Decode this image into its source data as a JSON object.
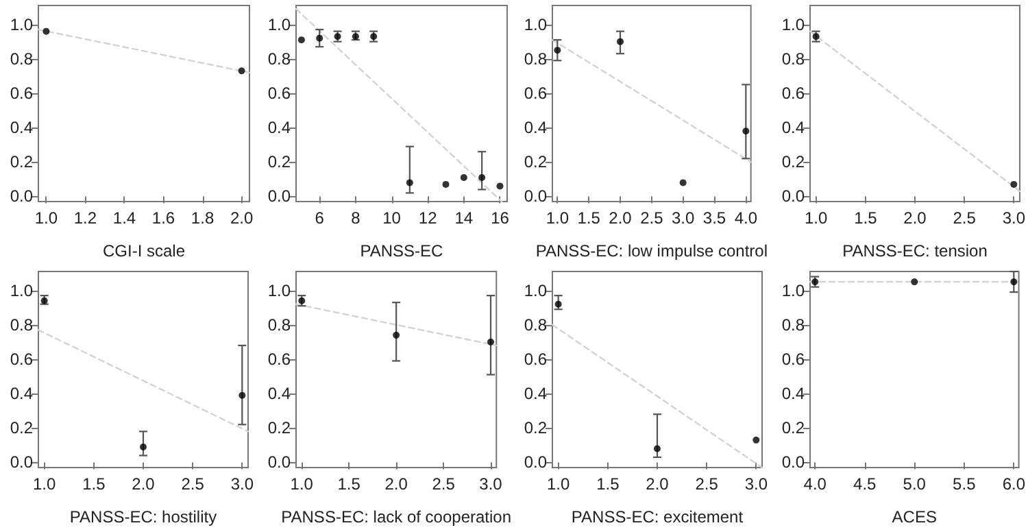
{
  "chart_data": [
    {
      "type": "scatter",
      "xlabel": "CGI-I scale",
      "marker": "circle",
      "grid": false,
      "xlim": [
        0.96,
        2.04
      ],
      "ylim": [
        -0.03,
        1.11
      ],
      "xticks": [
        {
          "value": 1,
          "label": "1.0"
        },
        {
          "value": 1.2,
          "label": "1.2"
        },
        {
          "value": 1.4,
          "label": "1.4"
        },
        {
          "value": 1.6,
          "label": "1.6"
        },
        {
          "value": 1.8,
          "label": "1.8"
        },
        {
          "value": 2,
          "label": "2.0"
        }
      ],
      "yticks": [
        {
          "value": 0,
          "label": "0.0"
        },
        {
          "value": 0.2,
          "label": "0.2"
        },
        {
          "value": 0.4,
          "label": "0.4"
        },
        {
          "value": 0.6,
          "label": "0.6"
        },
        {
          "value": 0.8,
          "label": "0.8"
        },
        {
          "value": 1,
          "label": "1.0"
        }
      ],
      "series": [
        {
          "type": "line",
          "marker": "none",
          "line_style": "dashed",
          "color": "#d3d3d3",
          "x": [
            0.96,
            2.04
          ],
          "values": [
            0.97,
            0.72
          ]
        },
        {
          "color": "#000000",
          "x": [
            1,
            2
          ],
          "values": [
            0.96,
            0.73
          ]
        }
      ]
    },
    {
      "type": "scatter",
      "xlabel": "PANSS-EC",
      "marker": "circle",
      "grid": false,
      "xlim": [
        4.7,
        16.4
      ],
      "ylim": [
        -0.03,
        1.11
      ],
      "xticks": [
        6,
        8,
        10,
        12,
        14,
        16
      ],
      "yticks": [
        {
          "value": 0,
          "label": "0.0"
        },
        {
          "value": 0.2,
          "label": "0.2"
        },
        {
          "value": 0.4,
          "label": "0.4"
        },
        {
          "value": 0.6,
          "label": "0.6"
        },
        {
          "value": 0.8,
          "label": "0.8"
        },
        {
          "value": 1,
          "label": "1.0"
        }
      ],
      "series": [
        {
          "type": "line",
          "marker": "none",
          "line_style": "dashed",
          "color": "#d3d3d3",
          "x": [
            4.7,
            16.1
          ],
          "values": [
            1.09,
            -0.03
          ]
        },
        {
          "color": "#000000",
          "x": [
            5,
            6,
            7,
            8,
            9,
            11,
            13,
            14,
            15,
            16
          ],
          "values": [
            0.91,
            0.92,
            0.93,
            0.93,
            0.93,
            0.08,
            0.07,
            0.11,
            0.11,
            0.06
          ],
          "errors": [
            null,
            [
              0.87,
              0.97
            ],
            [
              0.9,
              0.96
            ],
            [
              0.91,
              0.96
            ],
            [
              0.9,
              0.96
            ],
            [
              0.02,
              0.29
            ],
            null,
            null,
            [
              0.04,
              0.26
            ],
            null
          ]
        }
      ]
    },
    {
      "type": "scatter",
      "xlabel": "PANSS-EC: low impulse control",
      "marker": "circle",
      "grid": false,
      "xlim": [
        0.92,
        4.08
      ],
      "ylim": [
        -0.03,
        1.11
      ],
      "xticks": [
        {
          "value": 1,
          "label": "1.0"
        },
        {
          "value": 1.5,
          "label": "1.5"
        },
        {
          "value": 2,
          "label": "2.0"
        },
        {
          "value": 2.5,
          "label": "2.5"
        },
        {
          "value": 3,
          "label": "3.0"
        },
        {
          "value": 3.5,
          "label": "3.5"
        },
        {
          "value": 4,
          "label": "4.0"
        }
      ],
      "yticks": [
        {
          "value": 0,
          "label": "0.0"
        },
        {
          "value": 0.2,
          "label": "0.2"
        },
        {
          "value": 0.4,
          "label": "0.4"
        },
        {
          "value": 0.6,
          "label": "0.6"
        },
        {
          "value": 0.8,
          "label": "0.8"
        },
        {
          "value": 1,
          "label": "1.0"
        }
      ],
      "series": [
        {
          "type": "line",
          "marker": "none",
          "line_style": "dashed",
          "color": "#d3d3d3",
          "x": [
            0.92,
            4.08
          ],
          "values": [
            0.91,
            0.2
          ]
        },
        {
          "color": "#000000",
          "x": [
            1,
            2,
            3,
            4
          ],
          "values": [
            0.85,
            0.9,
            0.08,
            0.38
          ],
          "errors": [
            [
              0.79,
              0.91
            ],
            [
              0.83,
              0.96
            ],
            null,
            [
              0.22,
              0.65
            ]
          ]
        }
      ]
    },
    {
      "type": "scatter",
      "xlabel": "PANSS-EC: tension",
      "marker": "circle",
      "grid": false,
      "xlim": [
        0.94,
        3.06
      ],
      "ylim": [
        -0.03,
        1.11
      ],
      "xticks": [
        {
          "value": 1,
          "label": "1.0"
        },
        {
          "value": 1.5,
          "label": "1.5"
        },
        {
          "value": 2,
          "label": "2.0"
        },
        {
          "value": 2.5,
          "label": "2.5"
        },
        {
          "value": 3,
          "label": "3.0"
        }
      ],
      "yticks": [
        {
          "value": 0,
          "label": "0.0"
        },
        {
          "value": 0.2,
          "label": "0.2"
        },
        {
          "value": 0.4,
          "label": "0.4"
        },
        {
          "value": 0.6,
          "label": "0.6"
        },
        {
          "value": 0.8,
          "label": "0.8"
        },
        {
          "value": 1,
          "label": "1.0"
        }
      ],
      "series": [
        {
          "type": "line",
          "marker": "none",
          "line_style": "dashed",
          "color": "#d3d3d3",
          "x": [
            0.94,
            3.06
          ],
          "values": [
            0.96,
            0.03
          ]
        },
        {
          "color": "#000000",
          "x": [
            1,
            3
          ],
          "values": [
            0.93,
            0.07
          ],
          "errors": [
            [
              0.9,
              0.96
            ],
            null
          ]
        }
      ]
    },
    {
      "type": "scatter",
      "xlabel": "PANSS-EC: hostility",
      "marker": "circle",
      "grid": false,
      "xlim": [
        0.94,
        3.06
      ],
      "ylim": [
        -0.03,
        1.11
      ],
      "xticks": [
        {
          "value": 1,
          "label": "1.0"
        },
        {
          "value": 1.5,
          "label": "1.5"
        },
        {
          "value": 2,
          "label": "2.0"
        },
        {
          "value": 2.5,
          "label": "2.5"
        },
        {
          "value": 3,
          "label": "3.0"
        }
      ],
      "yticks": [
        {
          "value": 0,
          "label": "0.0"
        },
        {
          "value": 0.2,
          "label": "0.2"
        },
        {
          "value": 0.4,
          "label": "0.4"
        },
        {
          "value": 0.6,
          "label": "0.6"
        },
        {
          "value": 0.8,
          "label": "0.8"
        },
        {
          "value": 1,
          "label": "1.0"
        }
      ],
      "series": [
        {
          "type": "line",
          "marker": "none",
          "line_style": "dashed",
          "color": "#d3d3d3",
          "x": [
            0.94,
            3.06
          ],
          "values": [
            0.77,
            0.18
          ]
        },
        {
          "color": "#000000",
          "x": [
            1,
            2,
            3
          ],
          "values": [
            0.94,
            0.09,
            0.39
          ],
          "errors": [
            [
              0.92,
              0.97
            ],
            [
              0.04,
              0.18
            ],
            [
              0.22,
              0.68
            ]
          ]
        }
      ]
    },
    {
      "type": "scatter",
      "xlabel": "PANSS-EC: lack of cooperation",
      "marker": "circle",
      "grid": false,
      "xlim": [
        0.94,
        3.06
      ],
      "ylim": [
        -0.03,
        1.11
      ],
      "xticks": [
        {
          "value": 1,
          "label": "1.0"
        },
        {
          "value": 1.5,
          "label": "1.5"
        },
        {
          "value": 2,
          "label": "2.0"
        },
        {
          "value": 2.5,
          "label": "2.5"
        },
        {
          "value": 3,
          "label": "3.0"
        }
      ],
      "yticks": [
        {
          "value": 0,
          "label": "0.0"
        },
        {
          "value": 0.2,
          "label": "0.2"
        },
        {
          "value": 0.4,
          "label": "0.4"
        },
        {
          "value": 0.6,
          "label": "0.6"
        },
        {
          "value": 0.8,
          "label": "0.8"
        },
        {
          "value": 1,
          "label": "1.0"
        }
      ],
      "series": [
        {
          "type": "line",
          "marker": "none",
          "line_style": "dashed",
          "color": "#d3d3d3",
          "x": [
            0.94,
            3.06
          ],
          "values": [
            0.92,
            0.68
          ]
        },
        {
          "color": "#000000",
          "x": [
            1,
            2,
            3
          ],
          "values": [
            0.94,
            0.74,
            0.7
          ],
          "errors": [
            [
              0.91,
              0.97
            ],
            [
              0.59,
              0.93
            ],
            [
              0.51,
              0.97
            ]
          ]
        }
      ]
    },
    {
      "type": "scatter",
      "xlabel": "PANSS-EC: excitement",
      "marker": "circle",
      "grid": false,
      "xlim": [
        0.94,
        3.06
      ],
      "ylim": [
        -0.03,
        1.11
      ],
      "xticks": [
        {
          "value": 1,
          "label": "1.0"
        },
        {
          "value": 1.5,
          "label": "1.5"
        },
        {
          "value": 2,
          "label": "2.0"
        },
        {
          "value": 2.5,
          "label": "2.5"
        },
        {
          "value": 3,
          "label": "3.0"
        }
      ],
      "yticks": [
        {
          "value": 0,
          "label": "0.0"
        },
        {
          "value": 0.2,
          "label": "0.2"
        },
        {
          "value": 0.4,
          "label": "0.4"
        },
        {
          "value": 0.6,
          "label": "0.6"
        },
        {
          "value": 0.8,
          "label": "0.8"
        },
        {
          "value": 1,
          "label": "1.0"
        }
      ],
      "series": [
        {
          "type": "line",
          "marker": "none",
          "line_style": "dashed",
          "color": "#d3d3d3",
          "x": [
            0.94,
            3.06
          ],
          "values": [
            0.8,
            -0.03
          ]
        },
        {
          "color": "#000000",
          "x": [
            1,
            2,
            3
          ],
          "values": [
            0.92,
            0.08,
            0.13
          ],
          "errors": [
            [
              0.89,
              0.97
            ],
            [
              0.03,
              0.28
            ],
            null
          ]
        }
      ]
    },
    {
      "type": "scatter",
      "xlabel": "ACES",
      "marker": "circle",
      "grid": false,
      "xlim": [
        3.95,
        6.05
      ],
      "ylim": [
        -0.03,
        1.11
      ],
      "xticks": [
        {
          "value": 4,
          "label": "4.0"
        },
        {
          "value": 4.5,
          "label": "4.5"
        },
        {
          "value": 5,
          "label": "5.0"
        },
        {
          "value": 5.5,
          "label": "5.5"
        },
        {
          "value": 6,
          "label": "6.0"
        }
      ],
      "yticks": [
        {
          "value": 0,
          "label": "0.0"
        },
        {
          "value": 0.2,
          "label": "0.2"
        },
        {
          "value": 0.4,
          "label": "0.4"
        },
        {
          "value": 0.6,
          "label": "0.6"
        },
        {
          "value": 0.8,
          "label": "0.8"
        },
        {
          "value": 1,
          "label": "1.0"
        }
      ],
      "series": [
        {
          "type": "line",
          "marker": "none",
          "line_style": "dashed",
          "color": "#d3d3d3",
          "x": [
            3.95,
            6.05
          ],
          "values": [
            1.05,
            1.05
          ]
        },
        {
          "color": "#000000",
          "x": [
            4,
            5,
            6
          ],
          "values": [
            1.05,
            1.05,
            1.05
          ],
          "errors": [
            [
              1.02,
              1.08
            ],
            null,
            [
              0.99,
              1.11
            ]
          ]
        }
      ]
    }
  ]
}
